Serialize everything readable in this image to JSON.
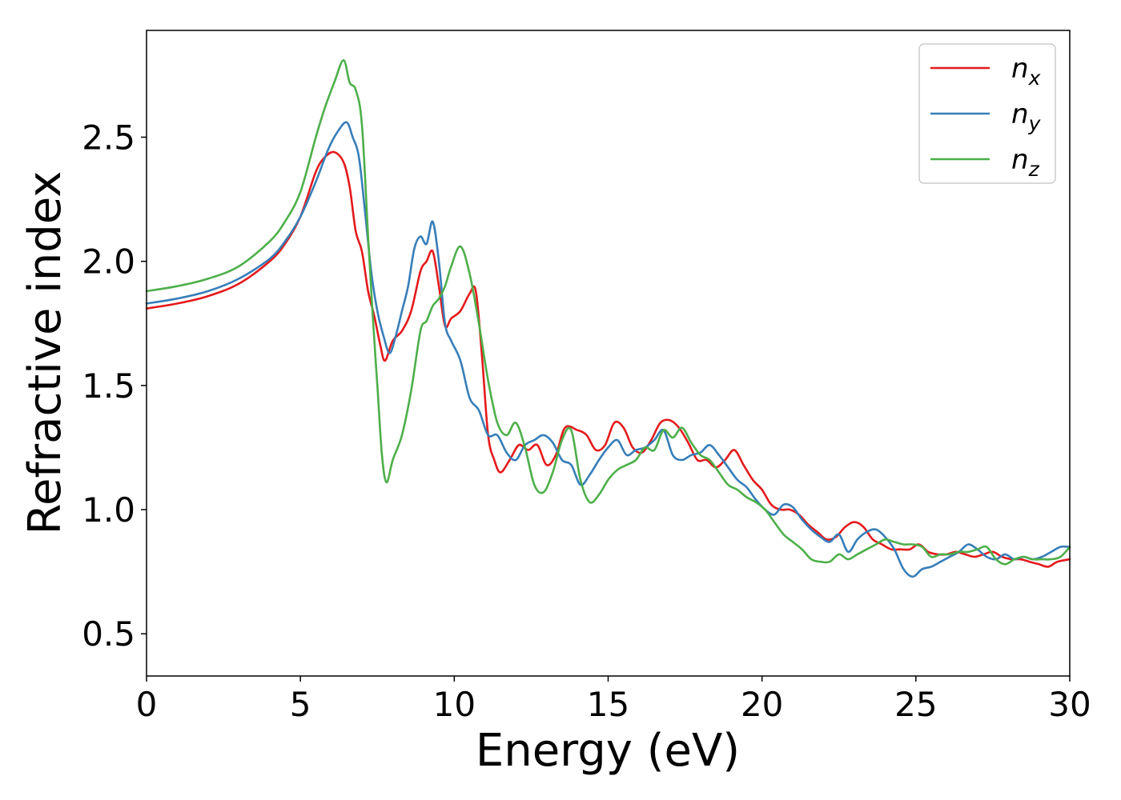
{
  "chart_data": {
    "type": "line",
    "title": "",
    "xlabel": "Energy (eV)",
    "ylabel": "Refractive index",
    "xlim": [
      0,
      30
    ],
    "ylim": [
      0.33,
      2.93
    ],
    "xticks": [
      "0",
      "5",
      "10",
      "15",
      "20",
      "25",
      "30"
    ],
    "yticks": [
      "0.5",
      "1.0",
      "1.5",
      "2.0",
      "2.5"
    ],
    "grid": false,
    "legend_position": "top-right",
    "series": [
      {
        "name": "n",
        "subscript": "x",
        "color": "#e41a1c",
        "x": [
          0,
          1,
          2,
          3,
          4,
          4.5,
          5,
          5.5,
          5.8,
          6.1,
          6.4,
          6.6,
          6.8,
          7.0,
          7.2,
          7.4,
          7.6,
          7.75,
          8.0,
          8.3,
          8.6,
          8.9,
          9.1,
          9.3,
          9.5,
          9.7,
          9.9,
          10.2,
          10.5,
          10.7,
          10.9,
          11.1,
          11.3,
          11.5,
          11.8,
          12.1,
          12.4,
          12.7,
          13.0,
          13.3,
          13.6,
          14.0,
          14.3,
          14.6,
          14.9,
          15.2,
          15.5,
          15.8,
          16.1,
          16.4,
          16.7,
          17.0,
          17.3,
          17.6,
          17.9,
          18.2,
          18.5,
          18.8,
          19.1,
          19.4,
          19.7,
          20.0,
          20.3,
          20.6,
          20.9,
          21.2,
          21.5,
          21.8,
          22.1,
          22.4,
          22.7,
          23.0,
          23.3,
          23.6,
          23.9,
          24.2,
          24.5,
          24.8,
          25.1,
          25.4,
          25.7,
          26.0,
          26.3,
          26.6,
          26.9,
          27.2,
          27.5,
          27.8,
          28.1,
          28.4,
          28.7,
          29.0,
          29.3,
          29.6,
          30
        ],
        "y": [
          1.81,
          1.83,
          1.86,
          1.91,
          2.0,
          2.07,
          2.18,
          2.36,
          2.42,
          2.44,
          2.4,
          2.3,
          2.12,
          2.04,
          1.88,
          1.78,
          1.66,
          1.6,
          1.68,
          1.72,
          1.8,
          1.96,
          2.0,
          2.04,
          1.9,
          1.74,
          1.77,
          1.8,
          1.87,
          1.88,
          1.62,
          1.3,
          1.2,
          1.15,
          1.2,
          1.26,
          1.24,
          1.26,
          1.18,
          1.22,
          1.33,
          1.32,
          1.3,
          1.24,
          1.26,
          1.35,
          1.33,
          1.25,
          1.23,
          1.28,
          1.35,
          1.36,
          1.33,
          1.27,
          1.2,
          1.2,
          1.17,
          1.2,
          1.24,
          1.18,
          1.12,
          1.08,
          1.02,
          1.0,
          1.0,
          0.98,
          0.94,
          0.91,
          0.88,
          0.89,
          0.93,
          0.95,
          0.93,
          0.88,
          0.86,
          0.84,
          0.84,
          0.84,
          0.86,
          0.83,
          0.82,
          0.82,
          0.83,
          0.82,
          0.81,
          0.82,
          0.83,
          0.81,
          0.8,
          0.8,
          0.79,
          0.78,
          0.77,
          0.79,
          0.8
        ]
      },
      {
        "name": "n",
        "subscript": "y",
        "color": "#377eb8",
        "x": [
          0,
          1,
          2,
          3,
          4,
          4.5,
          5,
          5.5,
          5.9,
          6.2,
          6.5,
          6.7,
          6.9,
          7.1,
          7.3,
          7.5,
          7.7,
          7.9,
          8.1,
          8.3,
          8.5,
          8.7,
          8.9,
          9.1,
          9.3,
          9.5,
          9.7,
          9.9,
          10.2,
          10.5,
          10.8,
          11.1,
          11.4,
          11.7,
          12.0,
          12.3,
          12.6,
          12.9,
          13.2,
          13.5,
          13.8,
          14.1,
          14.4,
          14.7,
          15.0,
          15.3,
          15.6,
          15.9,
          16.2,
          16.5,
          16.8,
          17.1,
          17.4,
          17.7,
          18.0,
          18.3,
          18.6,
          18.9,
          19.2,
          19.5,
          19.8,
          20.1,
          20.4,
          20.7,
          21.0,
          21.3,
          21.6,
          21.9,
          22.2,
          22.5,
          22.8,
          23.1,
          23.4,
          23.7,
          24.0,
          24.3,
          24.6,
          24.9,
          25.2,
          25.5,
          25.8,
          26.1,
          26.4,
          26.7,
          27.0,
          27.3,
          27.6,
          27.9,
          28.2,
          28.5,
          28.8,
          29.1,
          29.4,
          29.7,
          30
        ],
        "y": [
          1.83,
          1.85,
          1.88,
          1.93,
          2.01,
          2.08,
          2.18,
          2.32,
          2.45,
          2.52,
          2.56,
          2.5,
          2.42,
          2.2,
          1.96,
          1.8,
          1.7,
          1.63,
          1.7,
          1.8,
          1.9,
          2.05,
          2.1,
          2.07,
          2.16,
          2.0,
          1.75,
          1.68,
          1.6,
          1.45,
          1.4,
          1.3,
          1.3,
          1.23,
          1.2,
          1.26,
          1.28,
          1.3,
          1.27,
          1.2,
          1.18,
          1.1,
          1.14,
          1.2,
          1.25,
          1.28,
          1.22,
          1.24,
          1.25,
          1.28,
          1.32,
          1.22,
          1.2,
          1.22,
          1.23,
          1.26,
          1.22,
          1.17,
          1.12,
          1.09,
          1.04,
          1.0,
          0.98,
          1.02,
          1.01,
          0.96,
          0.92,
          0.89,
          0.87,
          0.9,
          0.83,
          0.88,
          0.91,
          0.92,
          0.89,
          0.84,
          0.76,
          0.73,
          0.76,
          0.77,
          0.79,
          0.81,
          0.83,
          0.86,
          0.84,
          0.81,
          0.8,
          0.82,
          0.8,
          0.81,
          0.8,
          0.81,
          0.83,
          0.85,
          0.85
        ]
      },
      {
        "name": "n",
        "subscript": "z",
        "color": "#4daf4a",
        "x": [
          0,
          1,
          2,
          3,
          4,
          4.5,
          5,
          5.5,
          5.8,
          6.1,
          6.4,
          6.6,
          6.8,
          7.0,
          7.2,
          7.35,
          7.5,
          7.65,
          7.8,
          8.0,
          8.3,
          8.6,
          8.9,
          9.1,
          9.3,
          9.5,
          9.7,
          9.9,
          10.2,
          10.5,
          10.8,
          11.1,
          11.4,
          11.7,
          12.0,
          12.3,
          12.6,
          12.9,
          13.2,
          13.5,
          13.8,
          14.1,
          14.4,
          14.7,
          15.0,
          15.3,
          15.6,
          15.9,
          16.2,
          16.5,
          16.8,
          17.1,
          17.4,
          17.7,
          18.0,
          18.3,
          18.6,
          18.9,
          19.2,
          19.5,
          19.8,
          20.1,
          20.4,
          20.7,
          21.0,
          21.3,
          21.6,
          21.9,
          22.2,
          22.5,
          22.8,
          23.1,
          23.4,
          23.7,
          24.0,
          24.3,
          24.6,
          24.9,
          25.2,
          25.5,
          25.8,
          26.1,
          26.4,
          26.7,
          27.0,
          27.3,
          27.6,
          27.9,
          28.2,
          28.5,
          28.8,
          29.1,
          29.4,
          29.7,
          30
        ],
        "y": [
          1.88,
          1.9,
          1.93,
          1.98,
          2.08,
          2.16,
          2.28,
          2.5,
          2.62,
          2.72,
          2.81,
          2.72,
          2.69,
          2.55,
          2.1,
          1.78,
          1.5,
          1.22,
          1.11,
          1.2,
          1.3,
          1.48,
          1.72,
          1.76,
          1.82,
          1.85,
          1.9,
          1.98,
          2.06,
          1.95,
          1.75,
          1.52,
          1.35,
          1.3,
          1.35,
          1.25,
          1.1,
          1.07,
          1.15,
          1.28,
          1.32,
          1.12,
          1.03,
          1.06,
          1.12,
          1.16,
          1.18,
          1.2,
          1.25,
          1.24,
          1.32,
          1.29,
          1.33,
          1.27,
          1.22,
          1.2,
          1.15,
          1.1,
          1.08,
          1.05,
          1.03,
          1.0,
          0.95,
          0.9,
          0.87,
          0.84,
          0.8,
          0.79,
          0.79,
          0.82,
          0.8,
          0.82,
          0.84,
          0.86,
          0.88,
          0.87,
          0.86,
          0.86,
          0.85,
          0.81,
          0.82,
          0.82,
          0.83,
          0.83,
          0.84,
          0.85,
          0.8,
          0.78,
          0.8,
          0.81,
          0.8,
          0.8,
          0.8,
          0.81,
          0.85
        ]
      }
    ]
  }
}
